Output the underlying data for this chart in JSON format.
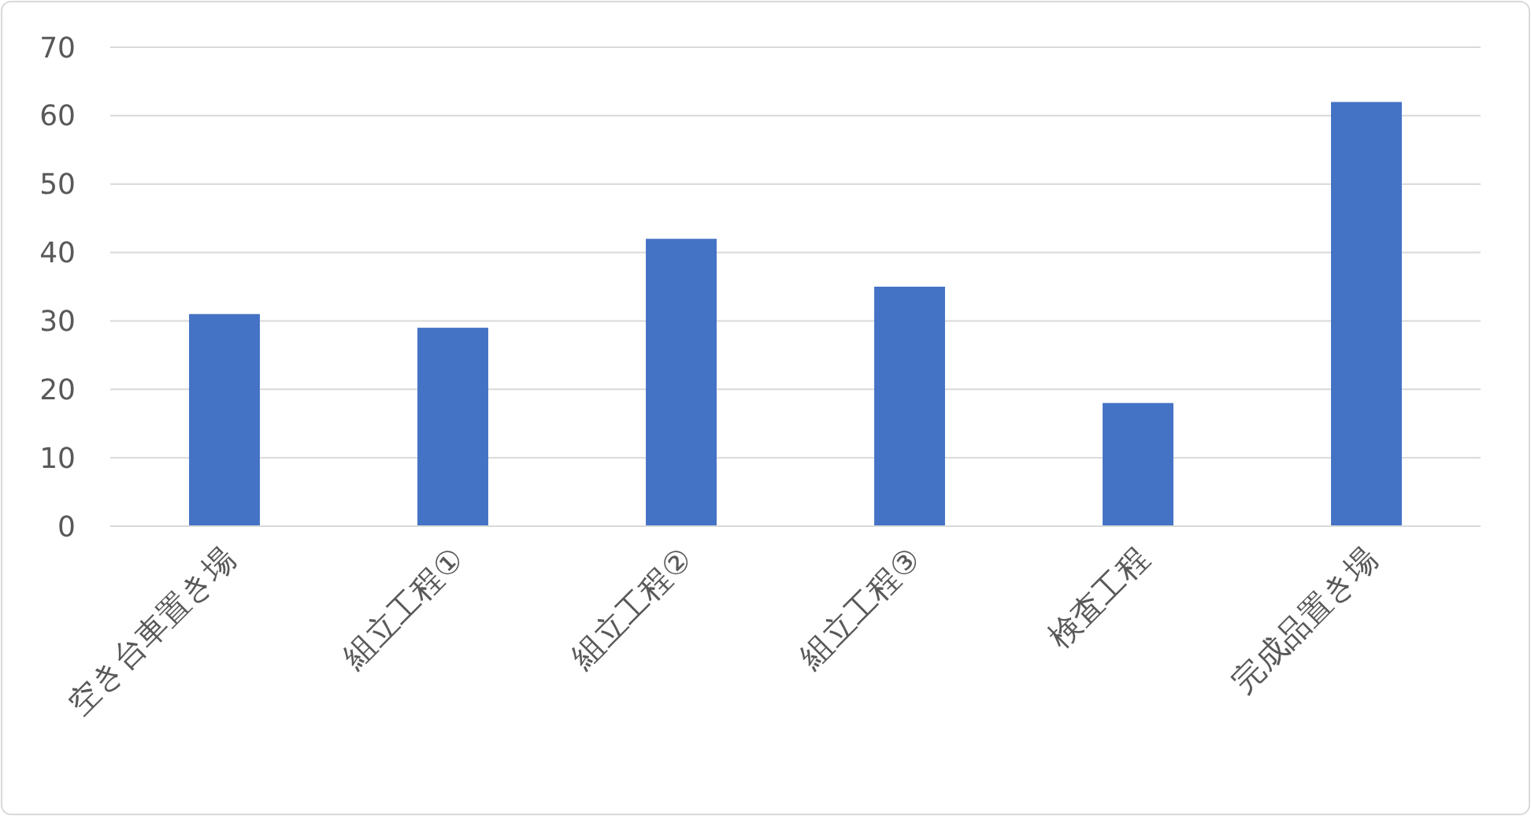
{
  "chart_data": {
    "type": "bar",
    "categories": [
      "空き台車置き場",
      "組立工程①",
      "組立工程②",
      "組立工程③",
      "検査工程",
      "完成品置き場"
    ],
    "values": [
      31,
      29,
      42,
      35,
      18,
      62
    ],
    "color": "#4472c4",
    "ylim": [
      0,
      70
    ],
    "yticks": [
      0,
      10,
      20,
      30,
      40,
      50,
      60,
      70
    ],
    "grid": "y"
  }
}
